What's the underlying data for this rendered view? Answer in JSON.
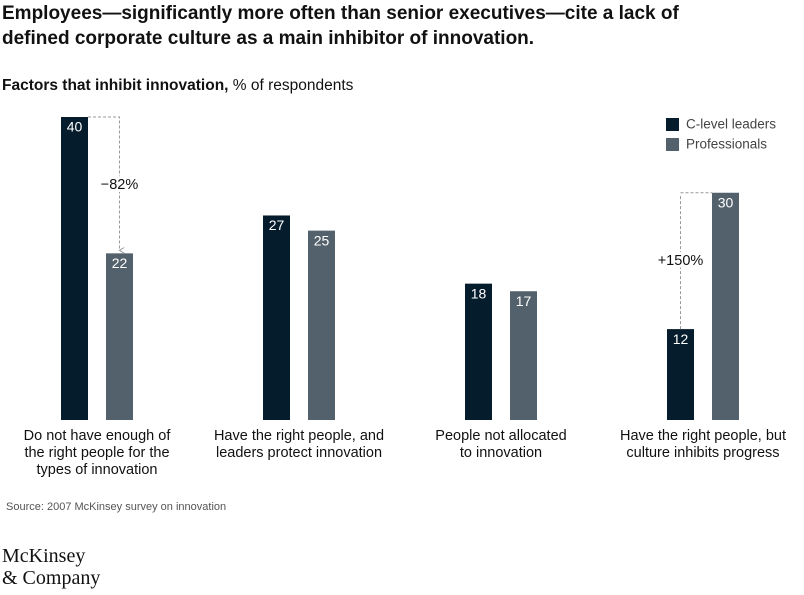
{
  "chart_data": {
    "type": "bar",
    "title": "Employees—significantly more often than senior executives—cite a lack of\ndefined corporate culture as a main inhibitor of innovation.",
    "subtitle_bold": "Factors that inhibit innovation,",
    "subtitle": "% of respondents",
    "categories": [
      "Do not have enough of\nthe right people for the\ntypes of innovation",
      "Have the right people, and\nleaders protect innovation",
      "People not allocated\nto innovation",
      "Have the right people, but\nculture inhibits progress"
    ],
    "series": [
      {
        "name": "C-level leaders",
        "color": "#051c2c",
        "values": [
          40,
          27,
          18,
          12
        ]
      },
      {
        "name": "Professionals",
        "color": "#53616c",
        "values": [
          22,
          25,
          17,
          30
        ]
      }
    ],
    "legend": "top-right",
    "annotations": [
      "−82%",
      "+150%"
    ],
    "source": "Source: 2007 McKinsey survey on innovation",
    "logo": "McKinsey\n& Company"
  }
}
